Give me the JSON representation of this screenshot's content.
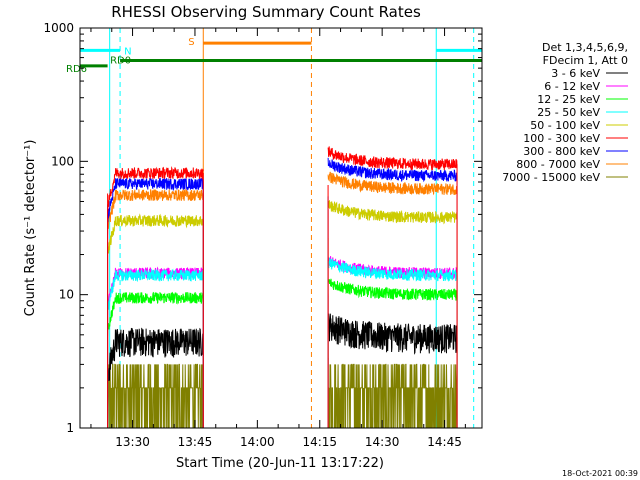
{
  "chart_data": {
    "type": "line",
    "title": "RHESSI Observing Summary Count Rates",
    "xlabel": "Start Time (20-Jun-11 13:17:22)",
    "ylabel": "Count Rate (s⁻¹ detector⁻¹)",
    "ylog": true,
    "xlim": [
      "13:17:22",
      "14:54:00"
    ],
    "ylim": [
      1,
      1000
    ],
    "x_ticks": [
      "13:30",
      "13:45",
      "14:00",
      "14:15",
      "14:30",
      "14:45"
    ],
    "y_ticks": [
      "1",
      "10",
      "100",
      "1000"
    ],
    "legend_header": [
      "Det 1,3,4,5,6,9,",
      "FDecim 1, Att 0"
    ],
    "legend_position": "right",
    "date_stamp": "18-Oct-2021 00:39",
    "series": [
      {
        "name": "3 - 6 keV",
        "color": "#000000",
        "segment1_level": 4.5,
        "segment2_level": 4.8
      },
      {
        "name": "6 - 12 keV",
        "color": "#ff00ff",
        "segment1_level": 14.5,
        "segment2_level": 14.5
      },
      {
        "name": "12 - 25 keV",
        "color": "#00ff00",
        "segment1_level": 9.5,
        "segment2_level": 10
      },
      {
        "name": "25 - 50 keV",
        "color": "#00ffff",
        "segment1_level": 14,
        "segment2_level": 14
      },
      {
        "name": "50 - 100 keV",
        "color": "#cccc00",
        "segment1_level": 36,
        "segment2_level": 38
      },
      {
        "name": "100 - 300 keV",
        "color": "#ff0000",
        "segment1_level": 82,
        "segment2_level": 95
      },
      {
        "name": "300 - 800 keV",
        "color": "#0000ff",
        "segment1_level": 68,
        "segment2_level": 78
      },
      {
        "name": "800 - 7000 keV",
        "color": "#ff8000",
        "segment1_level": 56,
        "segment2_level": 62
      },
      {
        "name": "7000 - 15000 keV",
        "color": "#808000",
        "segment1_level": 1.5,
        "segment2_level": 2
      }
    ],
    "data_segments": [
      [
        "13:24:00",
        "13:47:00"
      ],
      [
        "14:17:00",
        "14:48:00"
      ]
    ],
    "flags": [
      {
        "label": "RD6",
        "color": "#008000",
        "start": "13:17:22",
        "end": "13:24:00",
        "level": 520
      },
      {
        "label": "RD0",
        "color": "#008000",
        "start": "13:27:00",
        "end": "14:54:00",
        "level": 570
      },
      {
        "label": "N",
        "color": "#00ffff",
        "start": "13:17:22",
        "end": "13:27:00",
        "level": 680
      },
      {
        "label": "",
        "color": "#00ffff",
        "start": "14:43:00",
        "end": "14:54:00",
        "level": 680
      },
      {
        "label": "S",
        "color": "#ff8000",
        "start": "13:47:00",
        "end": "14:13:00",
        "level": 770
      }
    ],
    "vlines": [
      {
        "time": "13:24:30",
        "color": "#00ffff",
        "style": "solid"
      },
      {
        "time": "13:27:00",
        "color": "#00ffff",
        "style": "dashed"
      },
      {
        "time": "13:47:00",
        "color": "#ff8000",
        "style": "solid"
      },
      {
        "time": "14:13:00",
        "color": "#ff8000",
        "style": "dashed"
      },
      {
        "time": "14:43:00",
        "color": "#00ffff",
        "style": "solid"
      },
      {
        "time": "14:52:00",
        "color": "#00ffff",
        "style": "dashed"
      }
    ]
  }
}
